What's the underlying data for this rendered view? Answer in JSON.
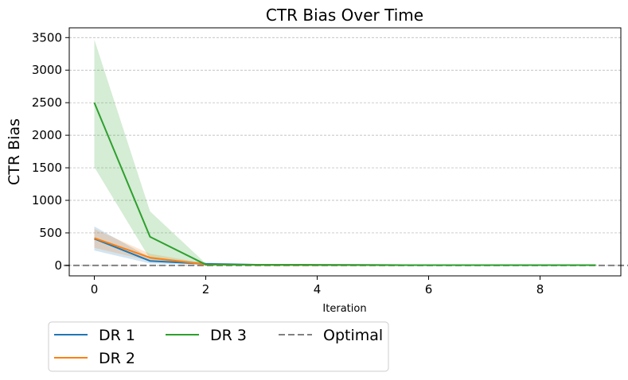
{
  "chart_data": {
    "type": "line",
    "title": "CTR Bias Over Time",
    "xlabel": "Iteration",
    "ylabel": "CTR Bias",
    "xlim": [
      -0.45,
      9.45
    ],
    "ylim": [
      -160,
      3650
    ],
    "xticks": [
      0,
      2,
      4,
      6,
      8
    ],
    "yticks": [
      0,
      500,
      1000,
      1500,
      2000,
      2500,
      3000,
      3500
    ],
    "grid": "y-dashed",
    "legend_placement": "below",
    "x": [
      0,
      1,
      2,
      3,
      4,
      5,
      6,
      7,
      8,
      9
    ],
    "series": [
      {
        "name": "DR 1",
        "color": "#1f77b4",
        "values": [
          410,
          70,
          25,
          10,
          8,
          6,
          5,
          5,
          5,
          5
        ],
        "lower": [
          230,
          30,
          10,
          5,
          4,
          3,
          2,
          2,
          2,
          2
        ],
        "upper": [
          600,
          120,
          45,
          18,
          14,
          10,
          8,
          8,
          8,
          8
        ]
      },
      {
        "name": "DR 2",
        "color": "#ff7f0e",
        "values": [
          420,
          120,
          15,
          8,
          6,
          5,
          5,
          5,
          5,
          5
        ],
        "lower": [
          270,
          70,
          5,
          3,
          3,
          2,
          2,
          2,
          2,
          2
        ],
        "upper": [
          560,
          180,
          30,
          14,
          10,
          8,
          8,
          8,
          8,
          8
        ]
      },
      {
        "name": "DR 3",
        "color": "#2ca02c",
        "values": [
          2500,
          440,
          15,
          10,
          8,
          6,
          5,
          5,
          5,
          5
        ],
        "lower": [
          1510,
          100,
          5,
          3,
          3,
          2,
          2,
          2,
          2,
          2
        ],
        "upper": [
          3470,
          830,
          30,
          18,
          14,
          10,
          8,
          8,
          8,
          8
        ]
      }
    ],
    "reference_line": {
      "name": "Optimal",
      "y": 0,
      "color": "#808080",
      "style": "dashed"
    },
    "legend_entries": [
      "DR 1",
      "DR 3",
      "Optimal",
      "DR 2"
    ]
  }
}
